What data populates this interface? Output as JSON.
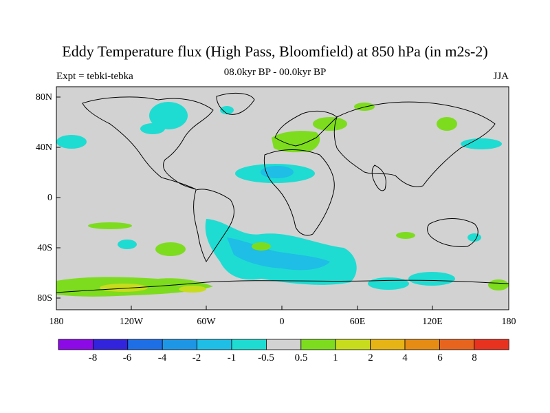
{
  "title": "Eddy Temperature flux (High Pass, Bloomfield) at 850 hPa (in m2s-2)",
  "subtitle_left": "Expt = tebki-tebka",
  "subtitle_center": "08.0kyr BP - 00.0kyr BP",
  "subtitle_right": "JJA",
  "lat_labels": [
    "80N",
    "40N",
    "0",
    "40S",
    "80S"
  ],
  "lon_labels": [
    "180",
    "120W",
    "60W",
    "0",
    "60E",
    "120E",
    "180"
  ],
  "colorbar": {
    "labels": [
      "-8",
      "-6",
      "-4",
      "-2",
      "-1",
      "-0.5",
      "0.5",
      "1",
      "2",
      "4",
      "6",
      "8"
    ],
    "colors": [
      "#8c0ae6",
      "#3223dc",
      "#1e6ee6",
      "#1e96e6",
      "#1ebee6",
      "#1edcd2",
      "#d2d2d2",
      "#7ddc1e",
      "#c8dc1e",
      "#e6b414",
      "#e68c14",
      "#e6641e",
      "#e6321e"
    ]
  },
  "colors": {
    "land_ocean_background": "#d2d2d2",
    "coast": "#000000"
  }
}
